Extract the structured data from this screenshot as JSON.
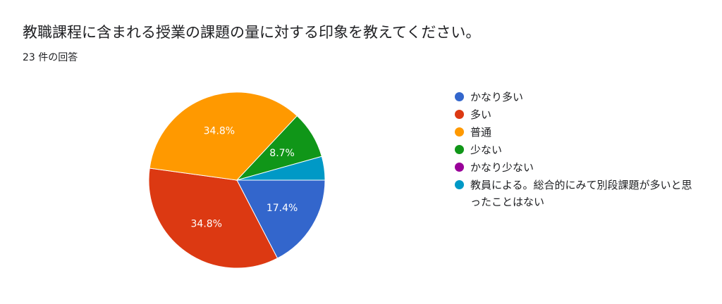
{
  "header": {
    "title": "教職課程に含まれる授業の課題の量に対する印象を教えてください。",
    "response_count": "23 件の回答"
  },
  "chart_data": {
    "type": "pie",
    "total_responses": 23,
    "legend_position": "right",
    "slices": [
      {
        "label": "かなり多い",
        "value": 4,
        "percent": 17.4,
        "percent_label": "17.4%",
        "color": "#3366cc"
      },
      {
        "label": "多い",
        "value": 8,
        "percent": 34.8,
        "percent_label": "34.8%",
        "color": "#dc3912"
      },
      {
        "label": "普通",
        "value": 8,
        "percent": 34.8,
        "percent_label": "34.8%",
        "color": "#ff9900"
      },
      {
        "label": "少ない",
        "value": 2,
        "percent": 8.7,
        "percent_label": "8.7%",
        "color": "#109618"
      },
      {
        "label": "かなり少ない",
        "value": 0,
        "percent": 0,
        "percent_label": "",
        "color": "#990099"
      },
      {
        "label": "教員による。総合的にみて別段課題が多いと思ったことはない",
        "value": 1,
        "percent": 4.3,
        "percent_label": "",
        "color": "#0099c6"
      }
    ]
  }
}
